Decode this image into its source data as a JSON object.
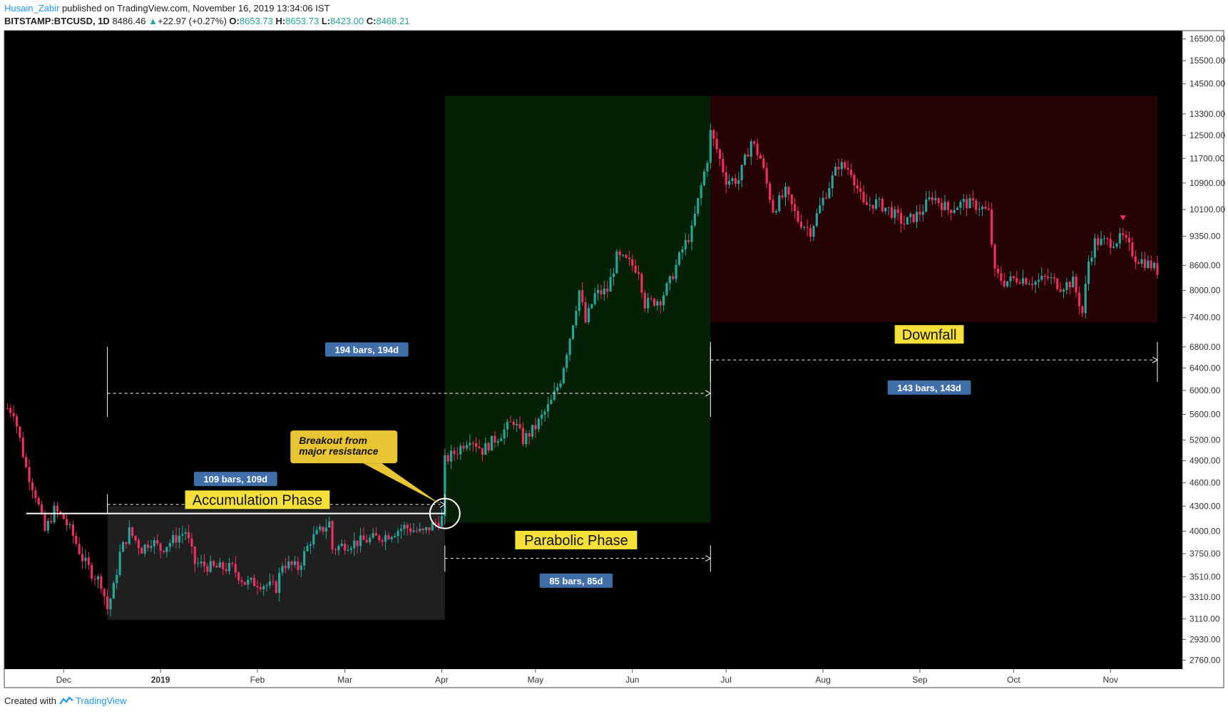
{
  "header": {
    "author": "Husain_Zabir",
    "published_text": " published on TradingView.com, November 16, 2019 13:34:06 IST",
    "symbol": "BITSTAMP:BTCUSD, 1D",
    "last": "8486.46",
    "change": "+22.97 (+0.27%)",
    "o_label": "O:",
    "o_value": "8653.73",
    "h_label": "H:",
    "h_value": "8653.73",
    "l_label": "L:",
    "l_value": "8423.00",
    "c_label": "C:",
    "c_value": "8468.21"
  },
  "footer": {
    "created_with": "Created with",
    "brand": "TradingView"
  },
  "colors": {
    "up": "#26a69a",
    "down": "#ef2f5f",
    "chart_bg": "#000000",
    "accumulation_zone": "#1f1f1f",
    "parabolic_zone": "#062006",
    "downfall_zone": "#260305",
    "label_blue": "#3f6ea8",
    "callout_yellow": "#e8c532",
    "phase_label_bg": "#f5e03a"
  },
  "chart_data": {
    "type": "candlestick",
    "log_scale": true,
    "ylim": [
      2690,
      16900
    ],
    "y_ticks": [
      16500,
      15500,
      14500,
      13300,
      12500,
      11700,
      10900,
      10100,
      9350,
      8600,
      8000,
      7400,
      6800,
      6400,
      6000,
      5600,
      5200,
      4900,
      4600,
      4300,
      4000,
      3750,
      3510,
      3310,
      3110,
      2930,
      2760
    ],
    "y_tick_labels": [
      "16500.00",
      "15500.00",
      "14500.00",
      "13300.00",
      "12500.00",
      "11700.00",
      "10900.00",
      "10100.00",
      "9350.00",
      "8600.00",
      "8000.00",
      "7400.00",
      "6800.00",
      "6400.00",
      "6000.00",
      "5600.00",
      "5200.00",
      "4900.00",
      "4600.00",
      "4300.00",
      "4000.00",
      "3750.00",
      "3510.00",
      "3310.00",
      "3110.00",
      "2930.00",
      "2760.00"
    ],
    "x_range": [
      "2018-11-12",
      "2019-11-24"
    ],
    "x_ticks": [
      {
        "date": "2018-12-01",
        "label": "Dec"
      },
      {
        "date": "2019-01-01",
        "label": "2019",
        "bold": true
      },
      {
        "date": "2019-02-01",
        "label": "Feb"
      },
      {
        "date": "2019-03-01",
        "label": "Mar"
      },
      {
        "date": "2019-04-01",
        "label": "Apr"
      },
      {
        "date": "2019-05-01",
        "label": "May"
      },
      {
        "date": "2019-06-01",
        "label": "Jun"
      },
      {
        "date": "2019-07-01",
        "label": "Jul"
      },
      {
        "date": "2019-08-01",
        "label": "Aug"
      },
      {
        "date": "2019-09-01",
        "label": "Sep"
      },
      {
        "date": "2019-10-01",
        "label": "Oct"
      },
      {
        "date": "2019-11-01",
        "label": "Nov"
      }
    ],
    "price_path": [
      [
        "2018-11-13",
        5700
      ],
      [
        "2018-11-15",
        5650
      ],
      [
        "2018-11-19",
        4800
      ],
      [
        "2018-11-22",
        4450
      ],
      [
        "2018-11-25",
        4000
      ],
      [
        "2018-11-28",
        4250
      ],
      [
        "2018-12-01",
        4150
      ],
      [
        "2018-12-04",
        3950
      ],
      [
        "2018-12-07",
        3700
      ],
      [
        "2018-12-10",
        3550
      ],
      [
        "2018-12-13",
        3450
      ],
      [
        "2018-12-15",
        3200
      ],
      [
        "2018-12-17",
        3400
      ],
      [
        "2018-12-19",
        3750
      ],
      [
        "2018-12-22",
        4000
      ],
      [
        "2018-12-26",
        3800
      ],
      [
        "2018-12-29",
        3900
      ],
      [
        "2019-01-01",
        3800
      ],
      [
        "2019-01-05",
        3900
      ],
      [
        "2019-01-09",
        4000
      ],
      [
        "2019-01-12",
        3650
      ],
      [
        "2019-01-18",
        3600
      ],
      [
        "2019-01-24",
        3600
      ],
      [
        "2019-01-28",
        3450
      ],
      [
        "2019-02-01",
        3450
      ],
      [
        "2019-02-07",
        3400
      ],
      [
        "2019-02-09",
        3650
      ],
      [
        "2019-02-14",
        3600
      ],
      [
        "2019-02-18",
        3900
      ],
      [
        "2019-02-24",
        4100
      ],
      [
        "2019-02-25",
        3800
      ],
      [
        "2019-03-01",
        3850
      ],
      [
        "2019-03-08",
        3900
      ],
      [
        "2019-03-14",
        3950
      ],
      [
        "2019-03-20",
        4050
      ],
      [
        "2019-03-26",
        3980
      ],
      [
        "2019-03-30",
        4100
      ],
      [
        "2019-04-01",
        4150
      ],
      [
        "2019-04-02",
        4900
      ],
      [
        "2019-04-06",
        5050
      ],
      [
        "2019-04-10",
        5250
      ],
      [
        "2019-04-14",
        5050
      ],
      [
        "2019-04-20",
        5300
      ],
      [
        "2019-04-24",
        5500
      ],
      [
        "2019-04-27",
        5200
      ],
      [
        "2019-05-01",
        5400
      ],
      [
        "2019-05-06",
        5800
      ],
      [
        "2019-05-09",
        6200
      ],
      [
        "2019-05-12",
        7000
      ],
      [
        "2019-05-15",
        8000
      ],
      [
        "2019-05-17",
        7300
      ],
      [
        "2019-05-20",
        7900
      ],
      [
        "2019-05-24",
        8000
      ],
      [
        "2019-05-27",
        8800
      ],
      [
        "2019-05-30",
        8700
      ],
      [
        "2019-06-03",
        8500
      ],
      [
        "2019-06-05",
        7700
      ],
      [
        "2019-06-10",
        7800
      ],
      [
        "2019-06-13",
        8200
      ],
      [
        "2019-06-17",
        9000
      ],
      [
        "2019-06-20",
        9500
      ],
      [
        "2019-06-23",
        10800
      ],
      [
        "2019-06-25",
        11700
      ],
      [
        "2019-06-26",
        12600
      ],
      [
        "2019-06-28",
        12000
      ],
      [
        "2019-07-01",
        11000
      ],
      [
        "2019-07-05",
        11000
      ],
      [
        "2019-07-09",
        12300
      ],
      [
        "2019-07-12",
        11700
      ],
      [
        "2019-07-16",
        10100
      ],
      [
        "2019-07-20",
        10600
      ],
      [
        "2019-07-24",
        9800
      ],
      [
        "2019-07-28",
        9500
      ],
      [
        "2019-08-01",
        10400
      ],
      [
        "2019-08-06",
        11500
      ],
      [
        "2019-08-10",
        11300
      ],
      [
        "2019-08-14",
        10200
      ],
      [
        "2019-08-18",
        10300
      ],
      [
        "2019-08-22",
        10100
      ],
      [
        "2019-08-27",
        9700
      ],
      [
        "2019-09-01",
        10000
      ],
      [
        "2019-09-05",
        10500
      ],
      [
        "2019-09-10",
        10100
      ],
      [
        "2019-09-15",
        10300
      ],
      [
        "2019-09-20",
        10200
      ],
      [
        "2019-09-23",
        10000
      ],
      [
        "2019-09-25",
        8400
      ],
      [
        "2019-09-28",
        8200
      ],
      [
        "2019-10-03",
        8300
      ],
      [
        "2019-10-08",
        8200
      ],
      [
        "2019-10-12",
        8300
      ],
      [
        "2019-10-16",
        8100
      ],
      [
        "2019-10-20",
        8200
      ],
      [
        "2019-10-23",
        7500
      ],
      [
        "2019-10-25",
        8700
      ],
      [
        "2019-10-27",
        9200
      ],
      [
        "2019-11-01",
        9200
      ],
      [
        "2019-11-05",
        9300
      ],
      [
        "2019-11-09",
        8800
      ],
      [
        "2019-11-14",
        8600
      ],
      [
        "2019-11-16",
        8470
      ]
    ],
    "zones": [
      {
        "name": "accumulation",
        "from": "2018-12-15",
        "to": "2019-04-02",
        "y_top": 4300,
        "y_bottom": 3100
      },
      {
        "name": "parabolic",
        "from": "2019-04-02",
        "to": "2019-06-26",
        "y_top": 14000,
        "y_bottom": 4100
      },
      {
        "name": "downfall",
        "from": "2019-06-26",
        "to": "2019-11-16",
        "y_top": 14000,
        "y_bottom": 7300
      }
    ],
    "resistance": {
      "from": "2018-11-19",
      "to": "2019-04-02",
      "price": 4210
    },
    "ranges": [
      {
        "label": "194 bars, 194d",
        "from": "2018-12-15",
        "to": "2019-06-26",
        "price": 5950,
        "cap_top": 6800,
        "cap_bottom": 5560,
        "label_date": "2019-03-08",
        "label_price": 6750
      },
      {
        "label": "109 bars, 109d",
        "from": "2018-12-15",
        "to": "2019-04-02",
        "price": 4320,
        "cap_top": 4450,
        "cap_bottom": 4220,
        "label_date": "2019-01-25",
        "label_price": 4650
      },
      {
        "label": "85 bars, 85d",
        "from": "2019-04-02",
        "to": "2019-06-26",
        "price": 3700,
        "cap_top": 3840,
        "cap_bottom": 3560,
        "label_date": "2019-05-14",
        "label_price": 3470
      },
      {
        "label": "143 bars, 143d",
        "from": "2019-06-26",
        "to": "2019-11-16",
        "price": 6550,
        "cap_top": 6900,
        "cap_bottom": 6150,
        "label_date": "2019-09-04",
        "label_price": 6050
      }
    ],
    "phase_labels": [
      {
        "text": "Accumulation Phase",
        "date": "2019-02-01",
        "price": 4380
      },
      {
        "text": "Parabolic Phase",
        "date": "2019-05-14",
        "price": 3900
      },
      {
        "text": "Downfall",
        "date": "2019-09-04",
        "price": 7050
      }
    ],
    "callout": {
      "line1": "Breakout from",
      "line2": "major resistance",
      "date": "2019-02-28",
      "price": 5100,
      "target_date": "2019-04-02",
      "target_price": 4200
    },
    "marker": {
      "date": "2019-11-05",
      "price": 9850
    }
  }
}
